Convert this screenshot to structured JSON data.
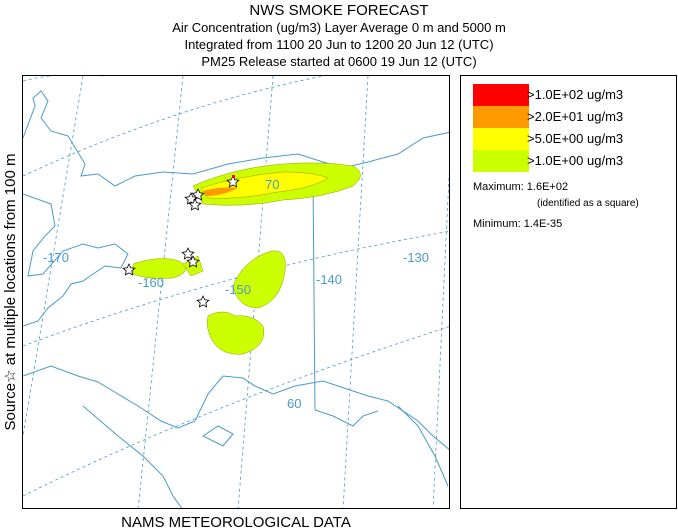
{
  "header": {
    "title": "NWS SMOKE FORECAST",
    "line1": "Air Concentration (ug/m3) Layer Average    0 m and  5000 m",
    "line2": "Integrated from 1100 20 Jun to 1200 20 Jun 12 (UTC)",
    "line3": "PM25 Release started at 0600 19 Jun 12 (UTC)"
  },
  "side_label": "Source☆ at multiple locations   from  100 m",
  "footer": "NAMS METEOROLOGICAL DATA",
  "map": {
    "longitude_labels": [
      "-170",
      "-160",
      "-150",
      "-140",
      "-130"
    ],
    "latitude_labels": [
      "70",
      "60"
    ],
    "colors": {
      "water": "#4a9acb",
      "graticule": "#4a9acb",
      "source_marker": "#ffffff"
    }
  },
  "legend": {
    "items": [
      {
        "label": ">1.0E+02 ug/m3",
        "color": "#ff0000"
      },
      {
        "label": ">2.0E+01 ug/m3",
        "color": "#ff9900"
      },
      {
        "label": ">5.0E+00 ug/m3",
        "color": "#ffff00"
      },
      {
        "label": ">1.0E+00 ug/m3",
        "color": "#ccff00"
      }
    ],
    "maximum_label": "Maximum: 1.6E+02",
    "maximum_note": "(identified as a square)",
    "minimum_label": "Minimum: 1.4E-35"
  }
}
